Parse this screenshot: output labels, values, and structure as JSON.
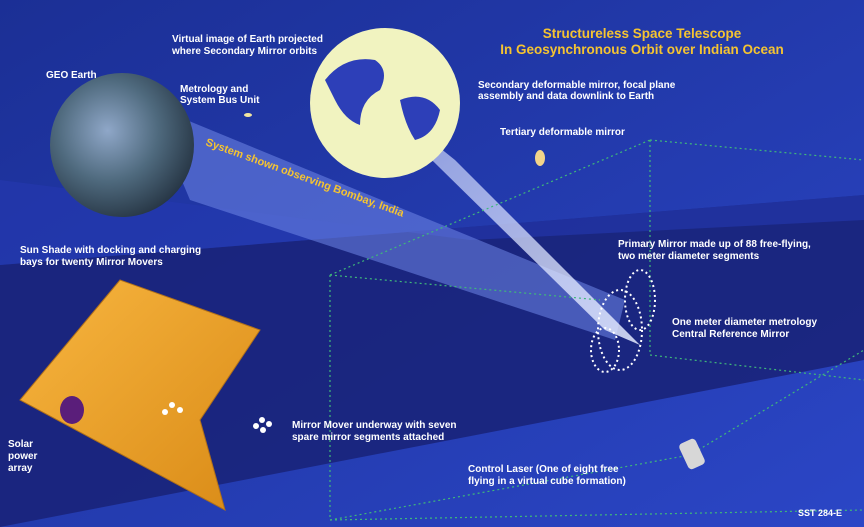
{
  "title": [
    "Structureless Space Telescope",
    "In Geosynchronous Orbit over Indian Ocean"
  ],
  "labels": {
    "virtual_image": [
      "Virtual image of Earth projected",
      "where Secondary Mirror orbits"
    ],
    "geo_earth": "GEO Earth",
    "metrology_unit": [
      "Metrology and",
      "System Bus Unit"
    ],
    "secondary_mirror": [
      "Secondary deformable mirror, focal plane",
      "assembly and data downlink to Earth"
    ],
    "tertiary_mirror": "Tertiary deformable mirror",
    "observing": "System shown observing Bombay, India",
    "sun_shade": [
      "Sun Shade with docking and charging",
      "bays for twenty Mirror Movers"
    ],
    "primary_mirror": [
      "Primary Mirror made up of 88 free-flying,",
      "two meter diameter segments"
    ],
    "reference_mirror": [
      "One meter diameter metrology",
      "Central Reference Mirror"
    ],
    "solar_array": [
      "Solar",
      "power",
      "array"
    ],
    "mirror_mover": [
      "Mirror Mover underway with seven",
      "spare mirror segments attached"
    ],
    "control_laser": [
      "Control Laser (One of eight free",
      "flying in a virtual cube formation)"
    ],
    "figure_id": "SST 284-E"
  }
}
